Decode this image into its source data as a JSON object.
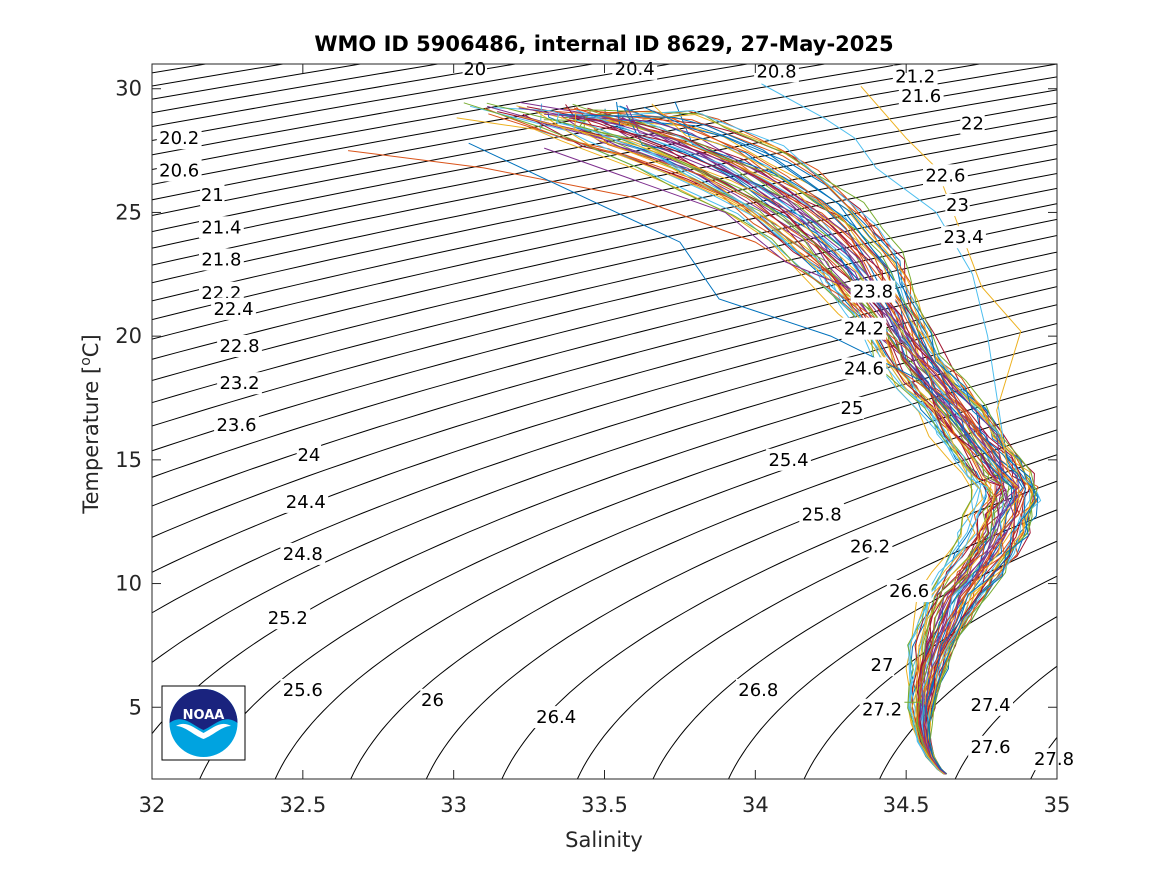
{
  "chart_data": {
    "type": "line",
    "title": "WMO ID 5906486, internal ID 8629, 27-May-2025",
    "xlabel": "Salinity",
    "ylabel": "Temperature [",
    "ylabel_sup": "o",
    "ylabel_end": "C]",
    "xlim": [
      32,
      35
    ],
    "ylim": [
      2.1,
      31
    ],
    "x_ticks": [
      32,
      32.5,
      33,
      33.5,
      34,
      34.5,
      35
    ],
    "x_tick_labels": [
      "32",
      "32.5",
      "33",
      "33.5",
      "34",
      "34.5",
      "35"
    ],
    "y_ticks": [
      5,
      10,
      15,
      20,
      25,
      30
    ],
    "y_tick_labels": [
      "5",
      "10",
      "15",
      "20",
      "25",
      "30"
    ],
    "grid": false,
    "legend": "none",
    "logo": {
      "text": "NOAA",
      "colors": {
        "dark": "#1a237e",
        "light": "#00a3e0"
      }
    },
    "density_contours": {
      "values": [
        "20",
        "20.2",
        "20.4",
        "20.6",
        "20.8",
        "21",
        "21.2",
        "21.4",
        "21.6",
        "21.8",
        "22",
        "22.2",
        "22.4",
        "22.6",
        "22.8",
        "23",
        "23.2",
        "23.4",
        "23.6",
        "23.8",
        "24",
        "24.2",
        "24.4",
        "24.6",
        "24.8",
        "25",
        "25.2",
        "25.4",
        "25.6",
        "25.8",
        "26",
        "26.2",
        "26.4",
        "26.6",
        "26.8",
        "27",
        "27.2",
        "27.4",
        "27.6",
        "27.8"
      ],
      "label_positions": [
        [
          33.07,
          30.8
        ],
        [
          32.09,
          28.0
        ],
        [
          33.6,
          30.8
        ],
        [
          32.09,
          26.7
        ],
        [
          34.07,
          30.7
        ],
        [
          32.2,
          25.7
        ],
        [
          34.53,
          30.5
        ],
        [
          32.23,
          24.4
        ],
        [
          34.55,
          29.7
        ],
        [
          32.23,
          23.1
        ],
        [
          34.72,
          28.6
        ],
        [
          32.23,
          21.75
        ],
        [
          32.27,
          21.1
        ],
        [
          34.63,
          26.5
        ],
        [
          32.29,
          19.6
        ],
        [
          34.67,
          25.3
        ],
        [
          32.29,
          18.1
        ],
        [
          34.69,
          24.0
        ],
        [
          32.28,
          16.4
        ],
        [
          34.39,
          21.8
        ],
        [
          32.52,
          15.2
        ],
        [
          34.36,
          20.3
        ],
        [
          32.51,
          13.3
        ],
        [
          34.36,
          18.7
        ],
        [
          32.5,
          11.2
        ],
        [
          34.32,
          17.1
        ],
        [
          32.45,
          8.6
        ],
        [
          34.11,
          15.0
        ],
        [
          32.5,
          5.7
        ],
        [
          34.22,
          12.8
        ],
        [
          32.93,
          5.3
        ],
        [
          34.38,
          11.5
        ],
        [
          33.34,
          4.6
        ],
        [
          34.51,
          9.7
        ],
        [
          34.01,
          5.7
        ],
        [
          34.42,
          6.7
        ],
        [
          34.42,
          4.9
        ],
        [
          34.78,
          5.1
        ],
        [
          34.78,
          3.4
        ],
        [
          34.99,
          2.9
        ]
      ]
    },
    "series_colors": [
      "#0072bd",
      "#d95319",
      "#edb120",
      "#7e2f8e",
      "#77ac30",
      "#4dbeee",
      "#a2142f"
    ],
    "profiles": {
      "count": 60,
      "deep_path": [
        [
          34.63,
          2.3
        ],
        [
          34.61,
          2.5
        ],
        [
          34.58,
          3.0
        ],
        [
          34.56,
          3.6
        ],
        [
          34.55,
          4.3
        ],
        [
          34.55,
          5.0
        ],
        [
          34.56,
          5.8
        ],
        [
          34.57,
          6.6
        ],
        [
          34.59,
          7.5
        ],
        [
          34.62,
          8.5
        ],
        [
          34.66,
          9.5
        ],
        [
          34.71,
          10.4
        ],
        [
          34.76,
          11.2
        ],
        [
          34.79,
          12.0
        ],
        [
          34.81,
          12.8
        ],
        [
          34.83,
          13.4
        ],
        [
          34.83,
          13.9
        ],
        [
          34.8,
          14.4
        ],
        [
          34.76,
          15.1
        ],
        [
          34.7,
          16.0
        ],
        [
          34.65,
          17.0
        ],
        [
          34.58,
          18.0
        ],
        [
          34.52,
          19.0
        ],
        [
          34.47,
          20.0
        ],
        [
          34.42,
          21.0
        ],
        [
          34.36,
          22.0
        ],
        [
          34.3,
          23.0
        ],
        [
          34.22,
          24.0
        ],
        [
          34.13,
          25.0
        ],
        [
          34.0,
          26.0
        ],
        [
          33.85,
          27.0
        ],
        [
          33.65,
          28.0
        ],
        [
          33.55,
          28.4
        ]
      ],
      "outliers": [
        [
          [
            32.65,
            27.5
          ],
          [
            33.1,
            26.8
          ],
          [
            33.6,
            25.6
          ],
          [
            34.0,
            23.8
          ],
          [
            34.3,
            21.5
          ],
          [
            34.6,
            18.5
          ],
          [
            34.78,
            15.5
          ],
          [
            34.82,
            14.0
          ]
        ],
        [
          [
            33.3,
            27.6
          ],
          [
            33.9,
            25.0
          ],
          [
            34.1,
            23.0
          ],
          [
            34.4,
            21.5
          ],
          [
            34.55,
            19.5
          ],
          [
            34.8,
            16.0
          ],
          [
            34.82,
            14.2
          ]
        ],
        [
          [
            34.02,
            30.2
          ],
          [
            34.23,
            28.8
          ],
          [
            34.33,
            28.0
          ],
          [
            34.4,
            26.8
          ],
          [
            34.6,
            25.0
          ],
          [
            34.72,
            22.5
          ],
          [
            34.77,
            20.0
          ],
          [
            34.82,
            16.0
          ]
        ],
        [
          [
            33.05,
            27.8
          ],
          [
            33.75,
            23.8
          ],
          [
            33.88,
            21.5
          ],
          [
            34.25,
            20.0
          ],
          [
            34.55,
            18.2
          ],
          [
            34.75,
            15.4
          ],
          [
            34.85,
            14.2
          ]
        ],
        [
          [
            34.35,
            30.1
          ],
          [
            34.5,
            28.0
          ],
          [
            34.6,
            26.8
          ],
          [
            34.65,
            25.2
          ],
          [
            34.75,
            22.0
          ],
          [
            34.88,
            20.2
          ],
          [
            34.8,
            17.0
          ],
          [
            34.84,
            14.5
          ]
        ],
        [
          [
            34.37,
            5.2
          ],
          [
            34.55,
            5.2
          ]
        ]
      ]
    }
  }
}
